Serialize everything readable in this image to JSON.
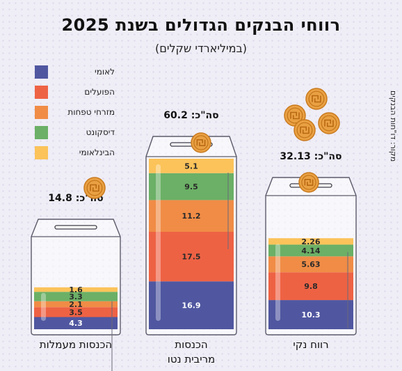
{
  "title": "רווחי הבנקים הגדולים בשנת 2025",
  "subtitle": "(במיליארדי שקלים)",
  "source": "מקור: דו\"חות הבנקים",
  "total_prefix": "סה\"כ:",
  "colors": {
    "לאומי": "#5057a0",
    "הפועלים": "#ee6244",
    "מזרחי טפחות": "#f08c46",
    "דיסקונט": "#6bb066",
    "הבינלאומי": "#fbc35a"
  },
  "chart_data": {
    "type": "bar",
    "stacked": true,
    "categories": [
      "הכנסות מעמלות",
      "הכנסות מריבית נטו",
      "רווח נקי"
    ],
    "category_lines": [
      [
        "הכנסות מעמלות"
      ],
      [
        "הכנסות",
        "מריבית נטו"
      ],
      [
        "רווח נקי"
      ]
    ],
    "totals": [
      "14.8",
      "60.2",
      "32.13"
    ],
    "series": [
      {
        "name": "לאומי",
        "values": [
          4.3,
          16.9,
          10.3
        ],
        "labels": [
          "4.3",
          "16.9",
          "10.3"
        ]
      },
      {
        "name": "הפועלים",
        "values": [
          3.5,
          17.5,
          9.8
        ],
        "labels": [
          "3.5",
          "17.5",
          "9.8"
        ]
      },
      {
        "name": "מזרחי טפחות",
        "values": [
          2.1,
          11.2,
          5.63
        ],
        "labels": [
          "2.1",
          "11.2",
          "5.63"
        ]
      },
      {
        "name": "דיסקונט",
        "values": [
          3.3,
          9.5,
          4.14
        ],
        "labels": [
          "3.3",
          "9.5",
          "4.14"
        ]
      },
      {
        "name": "הבינלאומי",
        "values": [
          1.6,
          5.1,
          2.26
        ],
        "labels": [
          "1.6",
          "5.1",
          "2.26"
        ]
      }
    ],
    "legend_position": "top-left"
  }
}
